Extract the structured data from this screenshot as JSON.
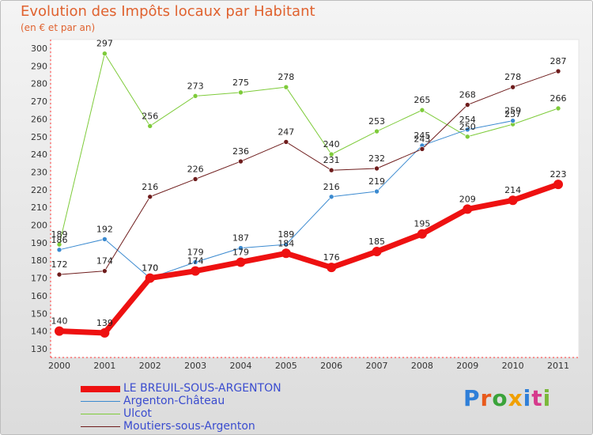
{
  "chart_data": {
    "type": "line",
    "title": "Evolution des Impôts locaux par Habitant",
    "subtitle": "(en € et par an)",
    "xlabel": "",
    "ylabel": "",
    "x": [
      "2000",
      "2001",
      "2002",
      "2003",
      "2004",
      "2005",
      "2006",
      "2007",
      "2008",
      "2009",
      "2010",
      "2011"
    ],
    "ylim": [
      130,
      300
    ],
    "yticks": [
      130,
      140,
      150,
      160,
      170,
      180,
      190,
      200,
      210,
      220,
      230,
      240,
      250,
      260,
      270,
      280,
      290,
      300
    ],
    "grid": false,
    "legend_position": "bottom-left",
    "series": [
      {
        "name": "LE BREUIL-SOUS-ARGENTON",
        "color": "#ee1111",
        "values": [
          140,
          139,
          170,
          174,
          179,
          184,
          176,
          185,
          195,
          209,
          214,
          223
        ]
      },
      {
        "name": "Argenton-Château",
        "color": "#3b8ad0",
        "values": [
          186,
          192,
          170,
          179,
          187,
          189,
          216,
          219,
          245,
          254,
          259,
          null
        ]
      },
      {
        "name": "Ulcot",
        "color": "#7ecb3a",
        "values": [
          189,
          297,
          256,
          273,
          275,
          278,
          240,
          253,
          265,
          250,
          257,
          266
        ]
      },
      {
        "name": "Moutiers-sous-Argenton",
        "color": "#6e1c1c",
        "values": [
          172,
          174,
          216,
          226,
          236,
          247,
          231,
          232,
          243,
          268,
          278,
          287
        ]
      }
    ]
  },
  "brand": {
    "name": "Proxiti",
    "colors": [
      "#2f7fd8",
      "#e85a1c",
      "#3aa33a",
      "#f0a000",
      "#2f7fd8",
      "#d63a8c",
      "#7ab83a"
    ]
  }
}
